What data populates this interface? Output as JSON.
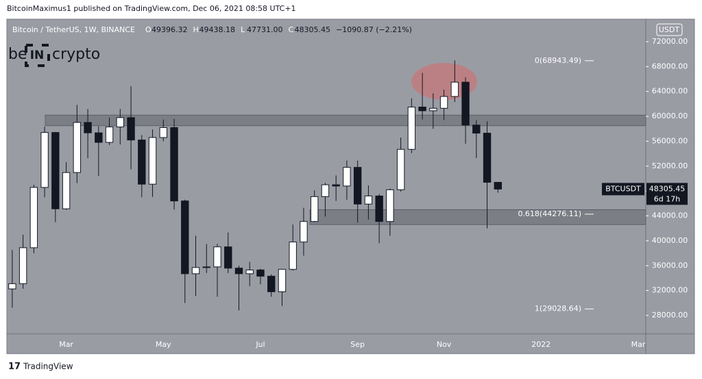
{
  "header": "BitcoinMaximus1 published on TradingView.com, Dec 06, 2021 08:58 UTC+1",
  "footer": "TradingView",
  "logo": [
    "be",
    "IN",
    "crypto"
  ],
  "chart_data": {
    "type": "candlestick",
    "title": "Bitcoin / TetherUS, 1W, BINANCE",
    "ohlc": [
      {
        "key": "O",
        "value": "49396.32"
      },
      {
        "key": "H",
        "value": "49438.18"
      },
      {
        "key": "L",
        "value": "47731.00"
      },
      {
        "key": "C",
        "value": "48305.45"
      }
    ],
    "change": "−1090.87 (−2.21%)",
    "currency": "USDT",
    "up_color": "#ffffff",
    "down_color": "#131722",
    "candles": [
      {
        "o": 32260,
        "h": 38531,
        "l": 29241,
        "c": 33092
      },
      {
        "o": 33092,
        "h": 40955,
        "l": 32296,
        "c": 38886
      },
      {
        "o": 38886,
        "h": 49000,
        "l": 37988,
        "c": 48577
      },
      {
        "o": 48577,
        "h": 58352,
        "l": 47003,
        "c": 57408
      },
      {
        "o": 57408,
        "h": 57500,
        "l": 43000,
        "c": 45135
      },
      {
        "o": 45135,
        "h": 52640,
        "l": 44950,
        "c": 50971
      },
      {
        "o": 50971,
        "h": 61844,
        "l": 49274,
        "c": 59020
      },
      {
        "o": 59020,
        "h": 61180,
        "l": 53271,
        "c": 57350
      },
      {
        "o": 57350,
        "h": 58400,
        "l": 50427,
        "c": 55817
      },
      {
        "o": 55817,
        "h": 59800,
        "l": 55400,
        "c": 58300
      },
      {
        "o": 58300,
        "h": 61200,
        "l": 55473,
        "c": 59800
      },
      {
        "o": 59800,
        "h": 64854,
        "l": 51500,
        "c": 56200
      },
      {
        "o": 56200,
        "h": 57000,
        "l": 47000,
        "c": 49100
      },
      {
        "o": 49100,
        "h": 57900,
        "l": 47044,
        "c": 56600
      },
      {
        "o": 56600,
        "h": 59500,
        "l": 56000,
        "c": 58200
      },
      {
        "o": 58200,
        "h": 59600,
        "l": 45000,
        "c": 46400
      },
      {
        "o": 46400,
        "h": 46600,
        "l": 30000,
        "c": 34700
      },
      {
        "o": 34700,
        "h": 40800,
        "l": 31100,
        "c": 35700
      },
      {
        "o": 35700,
        "h": 39476,
        "l": 34810,
        "c": 35800
      },
      {
        "o": 35800,
        "h": 39500,
        "l": 31000,
        "c": 39020
      },
      {
        "o": 39020,
        "h": 41330,
        "l": 34800,
        "c": 35600
      },
      {
        "o": 35600,
        "h": 36000,
        "l": 28800,
        "c": 34700
      },
      {
        "o": 34700,
        "h": 36600,
        "l": 32700,
        "c": 35300
      },
      {
        "o": 35300,
        "h": 35500,
        "l": 33000,
        "c": 34300
      },
      {
        "o": 34300,
        "h": 34600,
        "l": 31000,
        "c": 31800
      },
      {
        "o": 31800,
        "h": 35400,
        "l": 29500,
        "c": 35400
      },
      {
        "o": 35400,
        "h": 42600,
        "l": 35200,
        "c": 39800
      },
      {
        "o": 39800,
        "h": 45300,
        "l": 37600,
        "c": 43100
      },
      {
        "o": 43100,
        "h": 48100,
        "l": 43000,
        "c": 47100
      },
      {
        "o": 47100,
        "h": 49300,
        "l": 43900,
        "c": 49000
      },
      {
        "o": 49000,
        "h": 50500,
        "l": 46400,
        "c": 48800
      },
      {
        "o": 48800,
        "h": 52900,
        "l": 46600,
        "c": 51800
      },
      {
        "o": 51800,
        "h": 52900,
        "l": 42900,
        "c": 45900
      },
      {
        "o": 45900,
        "h": 48900,
        "l": 43400,
        "c": 47200
      },
      {
        "o": 47200,
        "h": 47500,
        "l": 39600,
        "c": 43100
      },
      {
        "o": 43100,
        "h": 48400,
        "l": 40800,
        "c": 48200
      },
      {
        "o": 48200,
        "h": 56600,
        "l": 47900,
        "c": 54700
      },
      {
        "o": 54700,
        "h": 62900,
        "l": 54100,
        "c": 61500
      },
      {
        "o": 61500,
        "h": 67000,
        "l": 59500,
        "c": 60900
      },
      {
        "o": 60900,
        "h": 63700,
        "l": 58000,
        "c": 61300
      },
      {
        "o": 61300,
        "h": 64300,
        "l": 59400,
        "c": 63200
      },
      {
        "o": 63200,
        "h": 69000,
        "l": 62300,
        "c": 65500
      },
      {
        "o": 65500,
        "h": 66300,
        "l": 55600,
        "c": 58600
      },
      {
        "o": 58600,
        "h": 59400,
        "l": 53300,
        "c": 57300
      },
      {
        "o": 57300,
        "h": 59200,
        "l": 42000,
        "c": 49400
      },
      {
        "o": 49396.32,
        "h": 49438.18,
        "l": 47731,
        "c": 48305.45
      }
    ],
    "xlim": [
      -0.5,
      58.7
    ],
    "xticks": [
      {
        "value": 5,
        "label": "Mar"
      },
      {
        "value": 14,
        "label": "May"
      },
      {
        "value": 23,
        "label": "Jul"
      },
      {
        "value": 32,
        "label": "Sep"
      },
      {
        "value": 40,
        "label": "Nov"
      },
      {
        "value": 49,
        "label": "2022"
      },
      {
        "value": 58,
        "label": "Mar"
      }
    ],
    "ylim": [
      25030,
      75630
    ],
    "yticks": [
      {
        "value": 28000,
        "label": "28000.00"
      },
      {
        "value": 32000,
        "label": "32000.00"
      },
      {
        "value": 36000,
        "label": "36000.00"
      },
      {
        "value": 40000,
        "label": "40000.00"
      },
      {
        "value": 44000,
        "label": "44000.00"
      },
      {
        "value": 48000,
        "label": "48000.00"
      },
      {
        "value": 52000,
        "label": "52000.00"
      },
      {
        "value": 56000,
        "label": "56000.00"
      },
      {
        "value": 60000,
        "label": "60000.00"
      },
      {
        "value": 64000,
        "label": "64000.00"
      },
      {
        "value": 68000,
        "label": "68000.00"
      },
      {
        "value": 72000,
        "label": "72000.00"
      }
    ],
    "fib_levels": [
      {
        "value": 68943.49,
        "label": "0(68943.49)"
      },
      {
        "value": 44276.11,
        "label": "0.618(44276.11)"
      },
      {
        "value": 29028.64,
        "label": "1(29028.64)"
      }
    ],
    "zones": [
      {
        "low": 58500,
        "high": 60200
      },
      {
        "low": 42600,
        "high": 45000
      }
    ],
    "last_label": "BTCUSDT",
    "last_price": 48305.45,
    "countdown": "6d 17h"
  }
}
